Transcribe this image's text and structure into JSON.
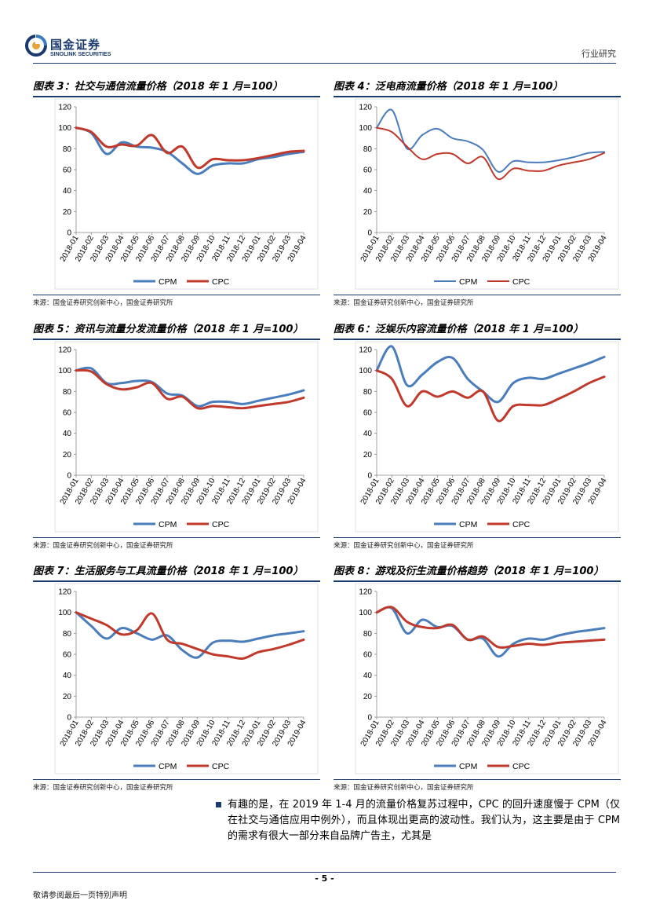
{
  "header": {
    "company_cn": "国金证券",
    "company_en": "SINOLINK SECURITIES",
    "section": "行业研究"
  },
  "colors": {
    "cpm": "#4a7dbb",
    "cpc": "#c0392b",
    "accent": "#1a3a6e"
  },
  "charts": [
    {
      "title": "图表 3：社交与通信流量价格（2018 年 1 月=100）",
      "source": "来源：国金证券研究创新中心，国金证券研究所",
      "chart_data": {
        "type": "line",
        "categories": [
          "2018-01",
          "2018-02",
          "2018-03",
          "2018-04",
          "2018-05",
          "2018-06",
          "2018-07",
          "2018-08",
          "2018-09",
          "2018-10",
          "2018-11",
          "2018-12",
          "2019-01",
          "2019-02",
          "2019-03",
          "2019-04"
        ],
        "ylim": [
          0,
          120
        ],
        "yticks": [
          0,
          20,
          40,
          60,
          80,
          100,
          120
        ],
        "series": [
          {
            "name": "CPM",
            "values": [
              100,
              95,
              75,
              86,
              82,
              81,
              77,
              66,
              56,
              64,
              66,
              66,
              70,
              72,
              75,
              77
            ]
          },
          {
            "name": "CPC",
            "values": [
              100,
              96,
              82,
              84,
              83,
              93,
              76,
              82,
              62,
              70,
              69,
              69,
              71,
              74,
              77,
              78
            ]
          }
        ]
      }
    },
    {
      "title": "图表 4：泛电商流量价格（2018 年 1 月=100）",
      "source": "来源：国金证券研究创新中心，国金证券研究所",
      "chart_data": {
        "type": "line",
        "categories": [
          "2018-01",
          "2018-02",
          "2018-03",
          "2018-04",
          "2018-05",
          "2018-06",
          "2018-07",
          "2018-08",
          "2018-09",
          "2018-10",
          "2018-11",
          "2018-12",
          "2019-01",
          "2019-02",
          "2019-03",
          "2019-04"
        ],
        "ylim": [
          0,
          120
        ],
        "yticks": [
          0,
          20,
          40,
          60,
          80,
          100,
          120
        ],
        "series": [
          {
            "name": "CPM",
            "values": [
              100,
              117,
              80,
              93,
              99,
              90,
              87,
              79,
              58,
              68,
              67,
              67,
              69,
              72,
              76,
              77
            ]
          },
          {
            "name": "CPC",
            "values": [
              100,
              96,
              82,
              70,
              75,
              75,
              66,
              72,
              51,
              61,
              59,
              59,
              64,
              67,
              70,
              76
            ]
          }
        ]
      }
    },
    {
      "title": "图表 5：资讯与流量分发流量价格（2018 年 1 月=100）",
      "source": "来源：国金证券研究创新中心，国金证券研究所",
      "chart_data": {
        "type": "line",
        "categories": [
          "2018-01",
          "2018-02",
          "2018-03",
          "2018-04",
          "2018-05",
          "2018-06",
          "2018-07",
          "2018-08",
          "2018-09",
          "2018-10",
          "2018-11",
          "2018-12",
          "2019-01",
          "2019-02",
          "2019-03",
          "2019-04"
        ],
        "ylim": [
          0,
          120
        ],
        "yticks": [
          0,
          20,
          40,
          60,
          80,
          100,
          120
        ],
        "series": [
          {
            "name": "CPM",
            "values": [
              100,
              102,
              88,
              88,
              90,
              89,
              78,
              76,
              66,
              70,
              70,
              68,
              71,
              74,
              77,
              81
            ]
          },
          {
            "name": "CPC",
            "values": [
              100,
              99,
              87,
              82,
              84,
              88,
              73,
              75,
              64,
              66,
              65,
              64,
              66,
              68,
              70,
              74
            ]
          }
        ]
      }
    },
    {
      "title": "图表 6：泛娱乐内容流量价格（2018 年 1 月=100）",
      "source": "来源：国金证券研究创新中心，国金证券研究所",
      "chart_data": {
        "type": "line",
        "categories": [
          "2018-01",
          "2018-02",
          "2018-03",
          "2018-04",
          "2018-05",
          "2018-06",
          "2018-07",
          "2018-08",
          "2018-09",
          "2018-10",
          "2018-11",
          "2018-12",
          "2019-01",
          "2019-02",
          "2019-03",
          "2019-04"
        ],
        "ylim": [
          0,
          120
        ],
        "yticks": [
          0,
          20,
          40,
          60,
          80,
          100,
          120
        ],
        "series": [
          {
            "name": "CPM",
            "values": [
              100,
              123,
              86,
              96,
              108,
              112,
              92,
              80,
              70,
              88,
              93,
              92,
              97,
              102,
              107,
              113
            ]
          },
          {
            "name": "CPC",
            "values": [
              100,
              92,
              66,
              80,
              75,
              80,
              74,
              80,
              52,
              66,
              67,
              67,
              73,
              80,
              88,
              94
            ]
          }
        ]
      }
    },
    {
      "title": "图表 7：生活服务与工具流量价格（2018 年 1 月=100）",
      "source": "来源：国金证券研究创新中心，国金证券研究所",
      "chart_data": {
        "type": "line",
        "categories": [
          "2018-01",
          "2018-02",
          "2018-03",
          "2018-04",
          "2018-05",
          "2018-06",
          "2018-07",
          "2018-08",
          "2018-09",
          "2018-10",
          "2018-11",
          "2018-12",
          "2019-01",
          "2019-02",
          "2019-03",
          "2019-04"
        ],
        "ylim": [
          0,
          120
        ],
        "yticks": [
          0,
          20,
          40,
          60,
          80,
          100,
          120
        ],
        "series": [
          {
            "name": "CPM",
            "values": [
              100,
              87,
              75,
              85,
              80,
              74,
              78,
              64,
              57,
              71,
              73,
              72,
              75,
              78,
              80,
              82
            ]
          },
          {
            "name": "CPC",
            "values": [
              100,
              94,
              88,
              79,
              83,
              99,
              74,
              70,
              65,
              60,
              58,
              56,
              62,
              65,
              69,
              74
            ]
          }
        ]
      }
    },
    {
      "title": "图表 8：游戏及衍生流量价格趋势（2018 年 1 月=100）",
      "source": "来源：国金证券研究创新中心，国金证券研究所",
      "chart_data": {
        "type": "line",
        "categories": [
          "2018-01",
          "2018-02",
          "2018-03",
          "2018-04",
          "2018-05",
          "2018-06",
          "2018-07",
          "2018-08",
          "2018-09",
          "2018-10",
          "2018-11",
          "2018-12",
          "2019-01",
          "2019-02",
          "2019-03",
          "2019-04"
        ],
        "ylim": [
          0,
          120
        ],
        "yticks": [
          0,
          20,
          40,
          60,
          80,
          100,
          120
        ],
        "series": [
          {
            "name": "CPM",
            "values": [
              100,
              104,
              80,
              93,
              86,
              87,
              74,
              75,
              58,
              70,
              75,
              74,
              78,
              81,
              83,
              85
            ]
          },
          {
            "name": "CPC",
            "values": [
              100,
              105,
              91,
              86,
              85,
              88,
              74,
              77,
              67,
              68,
              70,
              69,
              71,
              72,
              73,
              74
            ]
          }
        ]
      }
    }
  ],
  "body": {
    "paragraph": "有趣的是，在 2019 年 1-4 月的流量价格复苏过程中，CPC 的回升速度慢于 CPM（仅在社交与通信应用中例外），而且体现出更高的波动性。我们认为，这主要是由于 CPM 的需求有很大一部分来自品牌广告主，尤其是"
  },
  "footer": {
    "page": "- 5 -",
    "disclaimer": "敬请参阅最后一页特别声明"
  }
}
